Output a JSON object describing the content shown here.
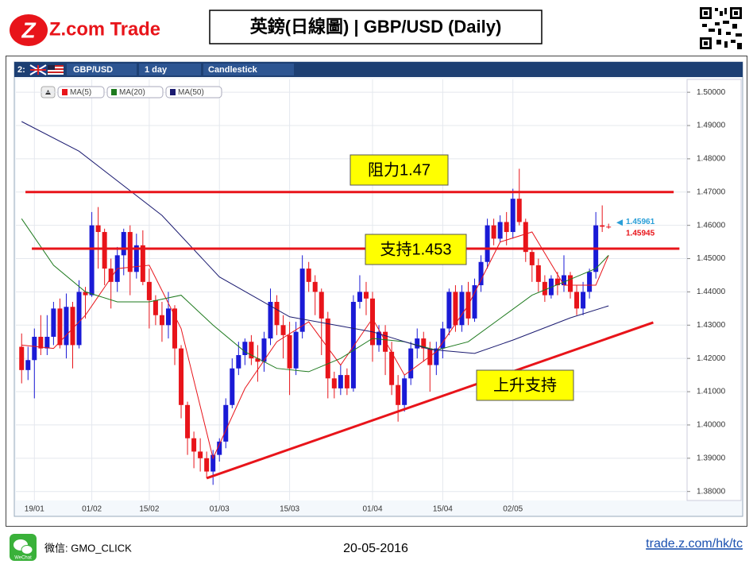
{
  "header": {
    "logo": "Z.com Trade",
    "title": "英鎊(日線圖) | GBP/USD (Daily)"
  },
  "toolbar": {
    "panel": "2:",
    "symbol": "GBP/USD",
    "period": "1 day",
    "style": "Candlestick"
  },
  "chart_data": {
    "type": "candlestick",
    "categories": [
      null,
      null,
      "19/01",
      null,
      null,
      null,
      null,
      null,
      null,
      null,
      null,
      "01/02",
      null,
      null,
      null,
      null,
      null,
      null,
      null,
      null,
      "15/02",
      null,
      null,
      null,
      null,
      null,
      null,
      null,
      null,
      null,
      null,
      "01/03",
      null,
      null,
      null,
      null,
      null,
      null,
      null,
      null,
      null,
      null,
      "15/03",
      null,
      null,
      null,
      null,
      null,
      null,
      null,
      null,
      null,
      null,
      null,
      null,
      "01/04",
      null,
      null,
      null,
      null,
      null,
      null,
      null,
      null,
      null,
      null,
      "15/04",
      null,
      null,
      null,
      null,
      null,
      null,
      null,
      null,
      null,
      null,
      "02/05",
      null,
      null,
      null,
      null,
      null,
      null,
      null,
      null,
      null,
      null,
      null,
      null,
      null,
      null,
      null
    ],
    "open": [
      1.4235,
      1.4165,
      1.4195,
      1.4265,
      1.423,
      1.4265,
      1.435,
      1.424,
      1.4355,
      1.424,
      1.44,
      1.439,
      1.46,
      1.458,
      1.447,
      1.443,
      1.451,
      1.458,
      1.446,
      1.454,
      1.443,
      1.4375,
      1.433,
      1.43,
      1.435,
      1.423,
      1.406,
      1.396,
      1.392,
      1.39,
      1.386,
      1.391,
      1.395,
      1.406,
      1.417,
      1.421,
      1.425,
      1.42,
      1.419,
      1.426,
      1.437,
      1.43,
      1.427,
      1.417,
      1.428,
      1.447,
      1.443,
      1.44,
      1.432,
      1.414,
      1.411,
      1.415,
      1.411,
      1.437,
      1.44,
      1.438,
      1.424,
      1.428,
      1.422,
      1.412,
      1.406,
      1.414,
      1.423,
      1.426,
      1.423,
      1.418,
      1.423,
      1.429,
      1.44,
      1.43,
      1.44,
      1.432,
      1.442,
      1.449,
      1.46,
      1.456,
      1.461,
      1.458,
      1.468,
      1.461,
      1.452,
      1.448,
      1.443,
      1.439,
      1.444,
      1.442,
      1.445,
      1.44,
      1.435,
      1.44,
      1.446,
      1.46,
      1.4596
    ],
    "high": [
      1.4275,
      1.4235,
      1.429,
      1.433,
      1.433,
      1.437,
      1.438,
      1.4395,
      1.437,
      1.4435,
      1.4415,
      1.464,
      1.4655,
      1.459,
      1.45,
      1.4535,
      1.459,
      1.46,
      1.4575,
      1.4585,
      1.447,
      1.439,
      1.437,
      1.44,
      1.436,
      1.424,
      1.407,
      1.398,
      1.396,
      1.392,
      1.3925,
      1.396,
      1.408,
      1.42,
      1.425,
      1.426,
      1.427,
      1.424,
      1.428,
      1.441,
      1.439,
      1.433,
      1.431,
      1.431,
      1.451,
      1.449,
      1.445,
      1.441,
      1.434,
      1.416,
      1.418,
      1.417,
      1.439,
      1.445,
      1.443,
      1.44,
      1.43,
      1.43,
      1.425,
      1.415,
      1.415,
      1.425,
      1.429,
      1.428,
      1.425,
      1.425,
      1.431,
      1.441,
      1.442,
      1.442,
      1.443,
      1.444,
      1.451,
      1.462,
      1.462,
      1.463,
      1.464,
      1.471,
      1.477,
      1.462,
      1.453,
      1.45,
      1.445,
      1.445,
      1.446,
      1.451,
      1.446,
      1.442,
      1.443,
      1.447,
      1.464,
      1.466,
      1.4605
    ],
    "low": [
      1.4125,
      1.4135,
      1.408,
      1.421,
      1.421,
      1.424,
      1.423,
      1.42,
      1.417,
      1.423,
      1.432,
      1.4385,
      1.447,
      1.442,
      1.435,
      1.44,
      1.445,
      1.439,
      1.444,
      1.442,
      1.429,
      1.43,
      1.425,
      1.426,
      1.418,
      1.402,
      1.391,
      1.387,
      1.386,
      1.384,
      1.382,
      1.389,
      1.393,
      1.405,
      1.415,
      1.418,
      1.418,
      1.413,
      1.416,
      1.424,
      1.427,
      1.42,
      1.409,
      1.415,
      1.426,
      1.44,
      1.433,
      1.421,
      1.408,
      1.408,
      1.409,
      1.409,
      1.41,
      1.435,
      1.433,
      1.419,
      1.422,
      1.415,
      1.409,
      1.401,
      1.404,
      1.412,
      1.42,
      1.419,
      1.41,
      1.415,
      1.42,
      1.427,
      1.428,
      1.428,
      1.43,
      1.431,
      1.44,
      1.447,
      1.454,
      1.455,
      1.454,
      1.456,
      1.46,
      1.449,
      1.443,
      1.44,
      1.437,
      1.438,
      1.439,
      1.44,
      1.438,
      1.433,
      1.433,
      1.438,
      1.444,
      1.458,
      1.459
    ],
    "close": [
      1.4165,
      1.4195,
      1.4265,
      1.423,
      1.4265,
      1.435,
      1.424,
      1.4355,
      1.424,
      1.44,
      1.439,
      1.46,
      1.458,
      1.447,
      1.443,
      1.451,
      1.458,
      1.446,
      1.454,
      1.443,
      1.4375,
      1.433,
      1.43,
      1.435,
      1.423,
      1.406,
      1.396,
      1.392,
      1.39,
      1.386,
      1.391,
      1.395,
      1.406,
      1.417,
      1.421,
      1.425,
      1.42,
      1.419,
      1.426,
      1.437,
      1.43,
      1.427,
      1.417,
      1.428,
      1.447,
      1.443,
      1.44,
      1.432,
      1.414,
      1.411,
      1.415,
      1.411,
      1.437,
      1.44,
      1.438,
      1.424,
      1.428,
      1.422,
      1.412,
      1.406,
      1.414,
      1.423,
      1.426,
      1.423,
      1.418,
      1.423,
      1.429,
      1.44,
      1.43,
      1.44,
      1.432,
      1.442,
      1.449,
      1.46,
      1.456,
      1.461,
      1.458,
      1.468,
      1.461,
      1.452,
      1.448,
      1.443,
      1.439,
      1.444,
      1.442,
      1.445,
      1.44,
      1.435,
      1.44,
      1.446,
      1.46,
      1.4596,
      1.4594
    ],
    "up_color": "#1a1ad6",
    "down_color": "#e8141a",
    "series": [
      {
        "name": "MA(5)",
        "color": "#e8141a",
        "x": [
          0,
          5,
          10,
          15,
          20,
          25,
          30,
          35,
          40,
          45,
          50,
          55,
          60,
          65,
          70,
          75,
          80,
          85,
          90,
          92
        ],
        "values": [
          1.424,
          1.423,
          1.433,
          1.447,
          1.448,
          1.429,
          1.39,
          1.411,
          1.425,
          1.431,
          1.418,
          1.432,
          1.415,
          1.422,
          1.436,
          1.455,
          1.458,
          1.442,
          1.442,
          1.451
        ]
      },
      {
        "name": "MA(20)",
        "color": "#1e7a1e",
        "x": [
          0,
          5,
          10,
          15,
          20,
          25,
          30,
          35,
          40,
          45,
          50,
          55,
          60,
          65,
          70,
          75,
          80,
          85,
          90,
          92
        ],
        "values": [
          1.462,
          1.448,
          1.44,
          1.437,
          1.437,
          1.439,
          1.43,
          1.422,
          1.417,
          1.416,
          1.42,
          1.426,
          1.425,
          1.4225,
          1.425,
          1.432,
          1.439,
          1.443,
          1.447,
          1.451
        ]
      },
      {
        "name": "MA(50)",
        "color": "#1a1a70",
        "x": [
          0,
          9,
          22,
          31,
          42,
          55,
          64,
          71,
          77,
          86,
          92
        ],
        "values": [
          1.4912,
          1.4823,
          1.463,
          1.4445,
          1.4325,
          1.428,
          1.4227,
          1.4215,
          1.4255,
          1.4322,
          1.4358
        ]
      }
    ],
    "xlim": [
      -0.9,
      104.3
    ],
    "ylim": [
      1.3773,
      1.5029
    ],
    "yticks": [
      {
        "value": 1.38,
        "label": "1.38000"
      },
      {
        "value": 1.39,
        "label": "1.39000"
      },
      {
        "value": 1.4,
        "label": "1.40000"
      },
      {
        "value": 1.41,
        "label": "1.41000"
      },
      {
        "value": 1.42,
        "label": "1.42000"
      },
      {
        "value": 1.43,
        "label": "1.43000"
      },
      {
        "value": 1.44,
        "label": "1.44000"
      },
      {
        "value": 1.45,
        "label": "1.45000"
      },
      {
        "value": 1.46,
        "label": "1.46000"
      },
      {
        "value": 1.47,
        "label": "1.47000"
      },
      {
        "value": 1.48,
        "label": "1.48000"
      },
      {
        "value": 1.49,
        "label": "1.49000"
      },
      {
        "value": 1.5,
        "label": "1.50000"
      }
    ],
    "grid": true,
    "price_labels": [
      {
        "value": 1.45961,
        "color": "#2a9fd8"
      },
      {
        "value": 1.45945,
        "color": "#e8141a"
      }
    ],
    "lines": [
      {
        "text": "阻力1.47",
        "x": [
          0.6,
          102.2
        ],
        "y": [
          1.47,
          1.47
        ],
        "color": "#e8141a"
      },
      {
        "text": "支持1.453",
        "x": [
          1.6,
          103.1
        ],
        "y": [
          1.453,
          1.453
        ],
        "color": "#e8141a"
      },
      {
        "text": "上升支持",
        "x": [
          29.0,
          99.0
        ],
        "y": [
          1.384,
          1.4308
        ],
        "color": "#e8141a"
      }
    ]
  },
  "footer": {
    "wechat_icon": "WeChat",
    "wechat": "微信: GMO_CLICK",
    "date": "20-05-2016",
    "link": "trade.z.com/hk/tc"
  }
}
